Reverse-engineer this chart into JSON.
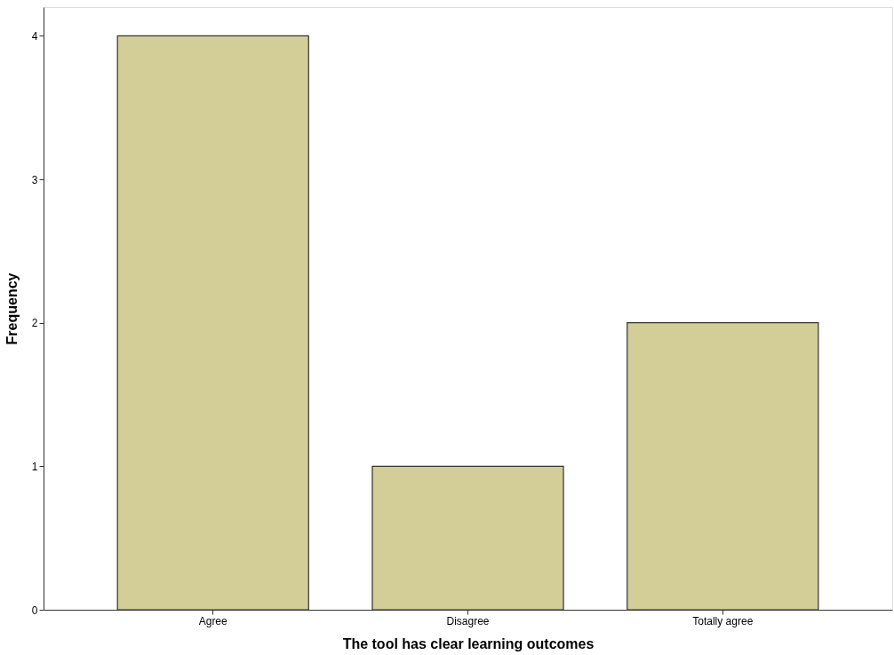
{
  "chart_data": {
    "type": "bar",
    "xlabel": "The tool has clear learning outcomes",
    "ylabel": "Frequency",
    "categories": [
      "Agree",
      "Disagree",
      "Totally agree"
    ],
    "values": [
      4,
      1,
      2
    ],
    "color": "#d3ce97",
    "ylim": [
      0,
      4.2
    ],
    "yticks": [
      0,
      1,
      2,
      3,
      4
    ],
    "grid": false
  }
}
